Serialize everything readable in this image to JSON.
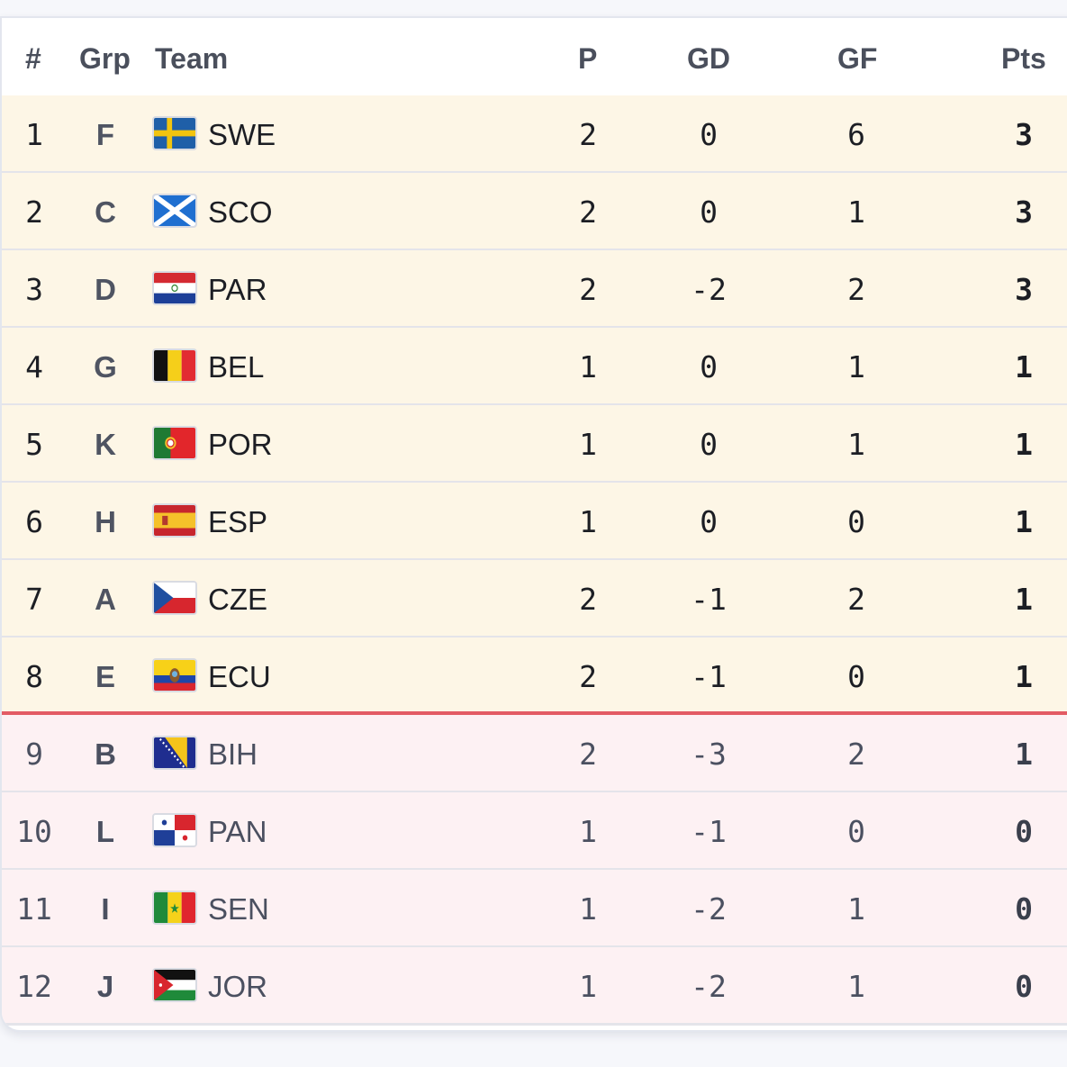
{
  "columns": {
    "rank": "#",
    "group": "Grp",
    "team": "Team",
    "played": "P",
    "gd": "GD",
    "gf": "GF",
    "pts": "Pts"
  },
  "colors": {
    "qualified_bg": "#fdf6e6",
    "eliminated_bg": "#fdf1f3",
    "cutoff_line": "#e35b64"
  },
  "rows": [
    {
      "rank": "1",
      "group": "F",
      "team": "SWE",
      "flag": "sweden-flag-icon",
      "played": "2",
      "gd": "0",
      "gf": "6",
      "pts": "3",
      "status": "qualified"
    },
    {
      "rank": "2",
      "group": "C",
      "team": "SCO",
      "flag": "scotland-flag-icon",
      "played": "2",
      "gd": "0",
      "gf": "1",
      "pts": "3",
      "status": "qualified"
    },
    {
      "rank": "3",
      "group": "D",
      "team": "PAR",
      "flag": "paraguay-flag-icon",
      "played": "2",
      "gd": "-2",
      "gf": "2",
      "pts": "3",
      "status": "qualified"
    },
    {
      "rank": "4",
      "group": "G",
      "team": "BEL",
      "flag": "belgium-flag-icon",
      "played": "1",
      "gd": "0",
      "gf": "1",
      "pts": "1",
      "status": "qualified"
    },
    {
      "rank": "5",
      "group": "K",
      "team": "POR",
      "flag": "portugal-flag-icon",
      "played": "1",
      "gd": "0",
      "gf": "1",
      "pts": "1",
      "status": "qualified"
    },
    {
      "rank": "6",
      "group": "H",
      "team": "ESP",
      "flag": "spain-flag-icon",
      "played": "1",
      "gd": "0",
      "gf": "0",
      "pts": "1",
      "status": "qualified"
    },
    {
      "rank": "7",
      "group": "A",
      "team": "CZE",
      "flag": "czechia-flag-icon",
      "played": "2",
      "gd": "-1",
      "gf": "2",
      "pts": "1",
      "status": "qualified"
    },
    {
      "rank": "8",
      "group": "E",
      "team": "ECU",
      "flag": "ecuador-flag-icon",
      "played": "2",
      "gd": "-1",
      "gf": "0",
      "pts": "1",
      "status": "qualified"
    },
    {
      "rank": "9",
      "group": "B",
      "team": "BIH",
      "flag": "bosnia-flag-icon",
      "played": "2",
      "gd": "-3",
      "gf": "2",
      "pts": "1",
      "status": "eliminated"
    },
    {
      "rank": "10",
      "group": "L",
      "team": "PAN",
      "flag": "panama-flag-icon",
      "played": "1",
      "gd": "-1",
      "gf": "0",
      "pts": "0",
      "status": "eliminated"
    },
    {
      "rank": "11",
      "group": "I",
      "team": "SEN",
      "flag": "senegal-flag-icon",
      "played": "1",
      "gd": "-2",
      "gf": "1",
      "pts": "0",
      "status": "eliminated"
    },
    {
      "rank": "12",
      "group": "J",
      "team": "JOR",
      "flag": "jordan-flag-icon",
      "played": "1",
      "gd": "-2",
      "gf": "1",
      "pts": "0",
      "status": "eliminated"
    }
  ]
}
